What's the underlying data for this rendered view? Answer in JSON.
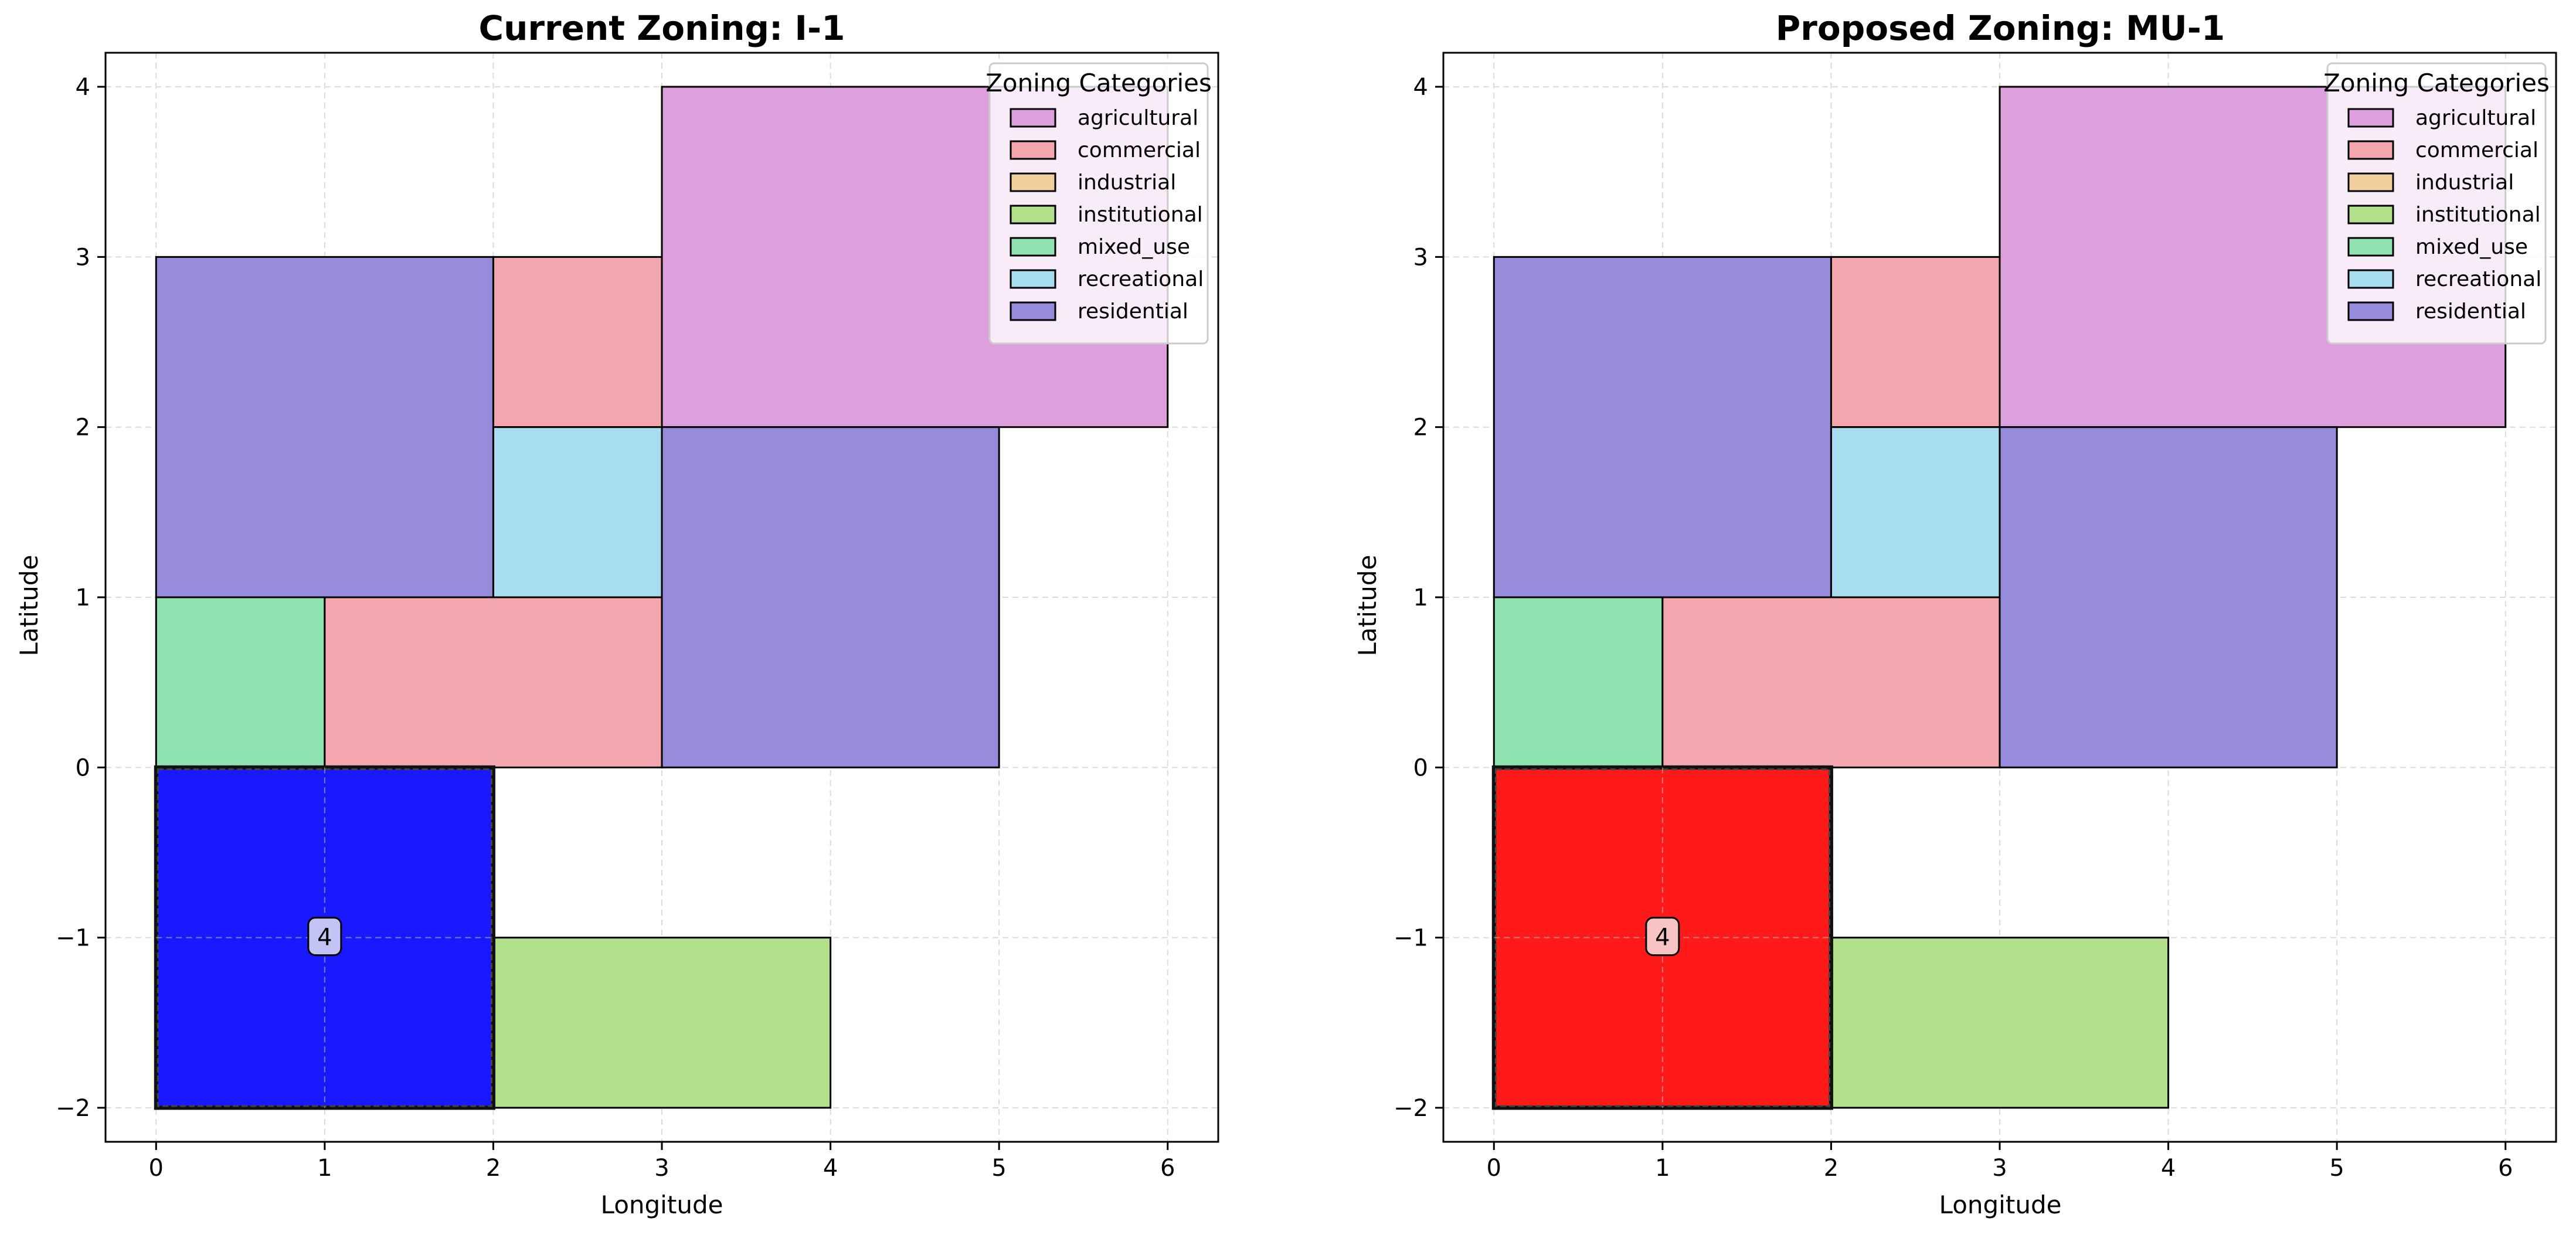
{
  "figure": {
    "legend_title": "Zoning Categories",
    "categories": [
      {
        "key": "agricultural",
        "label": "agricultural",
        "color": "#dda0dd"
      },
      {
        "key": "commercial",
        "label": "commercial",
        "color": "#f4a6ae"
      },
      {
        "key": "industrial",
        "label": "industrial",
        "color": "#f0cf9c"
      },
      {
        "key": "institutional",
        "label": "institutional",
        "color": "#b2df8a"
      },
      {
        "key": "mixed_use",
        "label": "mixed_use",
        "color": "#8ee3b0"
      },
      {
        "key": "recreational",
        "label": "recreational",
        "color": "#a8dcf0"
      },
      {
        "key": "residential",
        "label": "residential",
        "color": "#978bdc"
      }
    ]
  },
  "chart_data": [
    {
      "type": "map",
      "title": "Current Zoning: I-1",
      "xlabel": "Longitude",
      "ylabel": "Latitude",
      "xlim": [
        -0.3,
        6.3
      ],
      "ylim": [
        -2.2,
        4.2
      ],
      "xticks": [
        0,
        1,
        2,
        3,
        4,
        5,
        6
      ],
      "yticks": [
        -2,
        -1,
        0,
        1,
        2,
        3,
        4
      ],
      "xtick_labels": [
        "0",
        "1",
        "2",
        "3",
        "4",
        "5",
        "6"
      ],
      "ytick_labels": [
        "−2",
        "−1",
        "0",
        "1",
        "2",
        "3",
        "4"
      ],
      "grid": true,
      "legend_position": "top-right",
      "parcels": [
        {
          "zone": "residential",
          "x0": 0,
          "y0": 1,
          "x1": 2,
          "y1": 3
        },
        {
          "zone": "commercial",
          "x0": 2,
          "y0": 2,
          "x1": 3,
          "y1": 3
        },
        {
          "zone": "agricultural",
          "x0": 3,
          "y0": 2,
          "x1": 6,
          "y1": 4
        },
        {
          "zone": "recreational",
          "x0": 2,
          "y0": 1,
          "x1": 3,
          "y1": 2
        },
        {
          "zone": "residential",
          "x0": 3,
          "y0": 0,
          "x1": 5,
          "y1": 2
        },
        {
          "zone": "mixed_use",
          "x0": 0,
          "y0": 0,
          "x1": 1,
          "y1": 1
        },
        {
          "zone": "commercial",
          "x0": 1,
          "y0": 0,
          "x1": 3,
          "y1": 1
        },
        {
          "zone": "institutional",
          "x0": 2,
          "y0": -2,
          "x1": 4,
          "y1": -1
        }
      ],
      "highlight": {
        "label": "4",
        "x0": 0,
        "y0": -2,
        "x1": 2,
        "y1": 0,
        "color": "#0000ff",
        "label_bg": "#c3c3f5"
      }
    },
    {
      "type": "map",
      "title": "Proposed Zoning: MU-1",
      "xlabel": "Longitude",
      "ylabel": "Latitude",
      "xlim": [
        -0.3,
        6.3
      ],
      "ylim": [
        -2.2,
        4.2
      ],
      "xticks": [
        0,
        1,
        2,
        3,
        4,
        5,
        6
      ],
      "yticks": [
        -2,
        -1,
        0,
        1,
        2,
        3,
        4
      ],
      "xtick_labels": [
        "0",
        "1",
        "2",
        "3",
        "4",
        "5",
        "6"
      ],
      "ytick_labels": [
        "−2",
        "−1",
        "0",
        "1",
        "2",
        "3",
        "4"
      ],
      "grid": true,
      "legend_position": "top-right",
      "parcels": [
        {
          "zone": "residential",
          "x0": 0,
          "y0": 1,
          "x1": 2,
          "y1": 3
        },
        {
          "zone": "commercial",
          "x0": 2,
          "y0": 2,
          "x1": 3,
          "y1": 3
        },
        {
          "zone": "agricultural",
          "x0": 3,
          "y0": 2,
          "x1": 6,
          "y1": 4
        },
        {
          "zone": "recreational",
          "x0": 2,
          "y0": 1,
          "x1": 3,
          "y1": 2
        },
        {
          "zone": "residential",
          "x0": 3,
          "y0": 0,
          "x1": 5,
          "y1": 2
        },
        {
          "zone": "mixed_use",
          "x0": 0,
          "y0": 0,
          "x1": 1,
          "y1": 1
        },
        {
          "zone": "commercial",
          "x0": 1,
          "y0": 0,
          "x1": 3,
          "y1": 1
        },
        {
          "zone": "institutional",
          "x0": 2,
          "y0": -2,
          "x1": 4,
          "y1": -1
        }
      ],
      "highlight": {
        "label": "4",
        "x0": 0,
        "y0": -2,
        "x1": 2,
        "y1": 0,
        "color": "#ff0000",
        "label_bg": "#f8c3c3"
      }
    }
  ]
}
